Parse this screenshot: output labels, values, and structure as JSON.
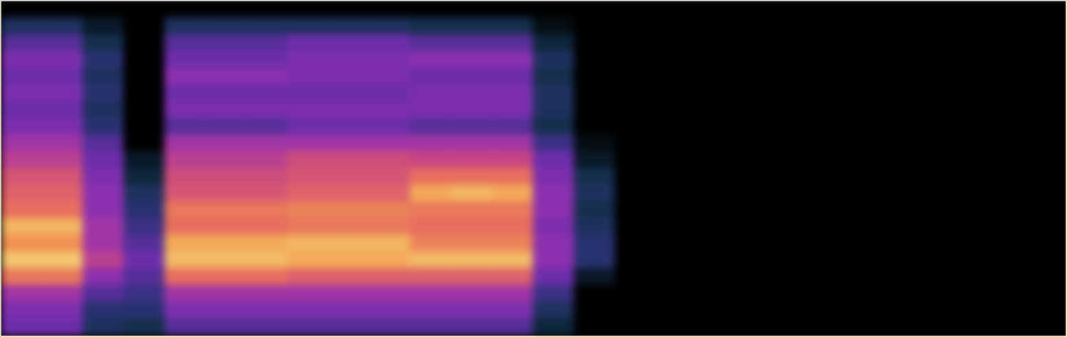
{
  "chart_data": {
    "type": "heatmap",
    "tick_labels": false,
    "xlim": [
      0,
      26
    ],
    "ylim": [
      0,
      20
    ],
    "zlim": [
      0,
      1
    ],
    "cells": [
      [
        0,
        0,
        0,
        0,
        0,
        0,
        0,
        0,
        0,
        0,
        0,
        0,
        0,
        0,
        0,
        0,
        0,
        0,
        0,
        0,
        0,
        0,
        0,
        0,
        0,
        0
      ],
      [
        0.25,
        0.25,
        0.1,
        0,
        0.25,
        0.25,
        0.25,
        0.25,
        0.25,
        0.25,
        0.2,
        0.2,
        0.2,
        0.05,
        0,
        0,
        0,
        0,
        0,
        0,
        0,
        0,
        0,
        0,
        0,
        0
      ],
      [
        0.4,
        0.4,
        0.2,
        0,
        0.4,
        0.4,
        0.4,
        0.45,
        0.45,
        0.45,
        0.4,
        0.4,
        0.4,
        0.15,
        0,
        0,
        0,
        0,
        0,
        0,
        0,
        0,
        0,
        0,
        0,
        0
      ],
      [
        0.5,
        0.5,
        0.3,
        0,
        0.45,
        0.45,
        0.45,
        0.5,
        0.5,
        0.5,
        0.55,
        0.55,
        0.55,
        0.25,
        0,
        0,
        0,
        0,
        0,
        0,
        0,
        0,
        0,
        0,
        0,
        0
      ],
      [
        0.45,
        0.45,
        0.25,
        0,
        0.55,
        0.55,
        0.55,
        0.5,
        0.5,
        0.5,
        0.45,
        0.45,
        0.45,
        0.2,
        0,
        0,
        0,
        0,
        0,
        0,
        0,
        0,
        0,
        0,
        0,
        0
      ],
      [
        0.5,
        0.5,
        0.3,
        0,
        0.45,
        0.45,
        0.45,
        0.45,
        0.45,
        0.45,
        0.5,
        0.5,
        0.5,
        0.25,
        0,
        0,
        0,
        0,
        0,
        0,
        0,
        0,
        0,
        0,
        0,
        0
      ],
      [
        0.45,
        0.45,
        0.25,
        0,
        0.5,
        0.5,
        0.5,
        0.5,
        0.5,
        0.5,
        0.5,
        0.5,
        0.5,
        0.25,
        0,
        0,
        0,
        0,
        0,
        0,
        0,
        0,
        0,
        0,
        0,
        0
      ],
      [
        0.5,
        0.5,
        0.3,
        0,
        0.4,
        0.4,
        0.4,
        0.45,
        0.45,
        0.45,
        0.4,
        0.4,
        0.4,
        0.2,
        0,
        0,
        0,
        0,
        0,
        0,
        0,
        0,
        0,
        0,
        0,
        0
      ],
      [
        0.6,
        0.6,
        0.4,
        0,
        0.6,
        0.6,
        0.6,
        0.6,
        0.6,
        0.6,
        0.6,
        0.6,
        0.6,
        0.35,
        0.05,
        0,
        0,
        0,
        0,
        0,
        0,
        0,
        0,
        0,
        0,
        0
      ],
      [
        0.65,
        0.65,
        0.45,
        0.1,
        0.65,
        0.65,
        0.65,
        0.7,
        0.7,
        0.7,
        0.68,
        0.68,
        0.68,
        0.45,
        0.1,
        0,
        0,
        0,
        0,
        0,
        0,
        0,
        0,
        0,
        0,
        0
      ],
      [
        0.72,
        0.72,
        0.5,
        0.15,
        0.7,
        0.7,
        0.7,
        0.72,
        0.72,
        0.72,
        0.78,
        0.78,
        0.78,
        0.5,
        0.2,
        0,
        0,
        0,
        0,
        0,
        0,
        0,
        0,
        0,
        0,
        0
      ],
      [
        0.75,
        0.75,
        0.55,
        0.25,
        0.72,
        0.72,
        0.72,
        0.75,
        0.75,
        0.75,
        0.9,
        0.92,
        0.9,
        0.55,
        0.25,
        0,
        0,
        0,
        0,
        0,
        0,
        0,
        0,
        0,
        0,
        0
      ],
      [
        0.78,
        0.78,
        0.55,
        0.3,
        0.8,
        0.8,
        0.8,
        0.82,
        0.82,
        0.82,
        0.8,
        0.8,
        0.8,
        0.55,
        0.2,
        0,
        0,
        0,
        0,
        0,
        0,
        0,
        0,
        0,
        0,
        0
      ],
      [
        0.92,
        0.92,
        0.6,
        0.35,
        0.78,
        0.78,
        0.78,
        0.8,
        0.8,
        0.8,
        0.78,
        0.78,
        0.78,
        0.5,
        0.25,
        0,
        0,
        0,
        0,
        0,
        0,
        0,
        0,
        0,
        0,
        0
      ],
      [
        0.85,
        0.85,
        0.6,
        0.4,
        0.9,
        0.9,
        0.9,
        0.92,
        0.92,
        0.92,
        0.82,
        0.82,
        0.82,
        0.55,
        0.3,
        0,
        0,
        0,
        0,
        0,
        0,
        0,
        0,
        0,
        0,
        0
      ],
      [
        0.95,
        0.95,
        0.65,
        0.45,
        0.93,
        0.93,
        0.93,
        0.9,
        0.9,
        0.9,
        0.93,
        0.93,
        0.93,
        0.55,
        0.3,
        0,
        0,
        0,
        0,
        0,
        0,
        0,
        0,
        0,
        0,
        0
      ],
      [
        0.8,
        0.8,
        0.55,
        0.4,
        0.78,
        0.78,
        0.78,
        0.75,
        0.75,
        0.75,
        0.75,
        0.75,
        0.75,
        0.45,
        0.1,
        0,
        0,
        0,
        0,
        0,
        0,
        0,
        0,
        0,
        0,
        0
      ],
      [
        0.6,
        0.6,
        0.4,
        0.35,
        0.6,
        0.6,
        0.6,
        0.6,
        0.6,
        0.6,
        0.6,
        0.6,
        0.6,
        0.35,
        0,
        0,
        0,
        0,
        0,
        0,
        0,
        0,
        0,
        0,
        0,
        0
      ],
      [
        0.5,
        0.5,
        0.3,
        0.3,
        0.5,
        0.5,
        0.5,
        0.5,
        0.5,
        0.5,
        0.5,
        0.5,
        0.5,
        0.25,
        0,
        0,
        0,
        0,
        0,
        0,
        0,
        0,
        0,
        0,
        0,
        0
      ],
      [
        0.45,
        0.45,
        0.25,
        0.2,
        0.4,
        0.4,
        0.4,
        0.4,
        0.4,
        0.4,
        0.4,
        0.4,
        0.4,
        0.15,
        0,
        0,
        0,
        0,
        0,
        0,
        0,
        0,
        0,
        0,
        0,
        0
      ]
    ]
  }
}
